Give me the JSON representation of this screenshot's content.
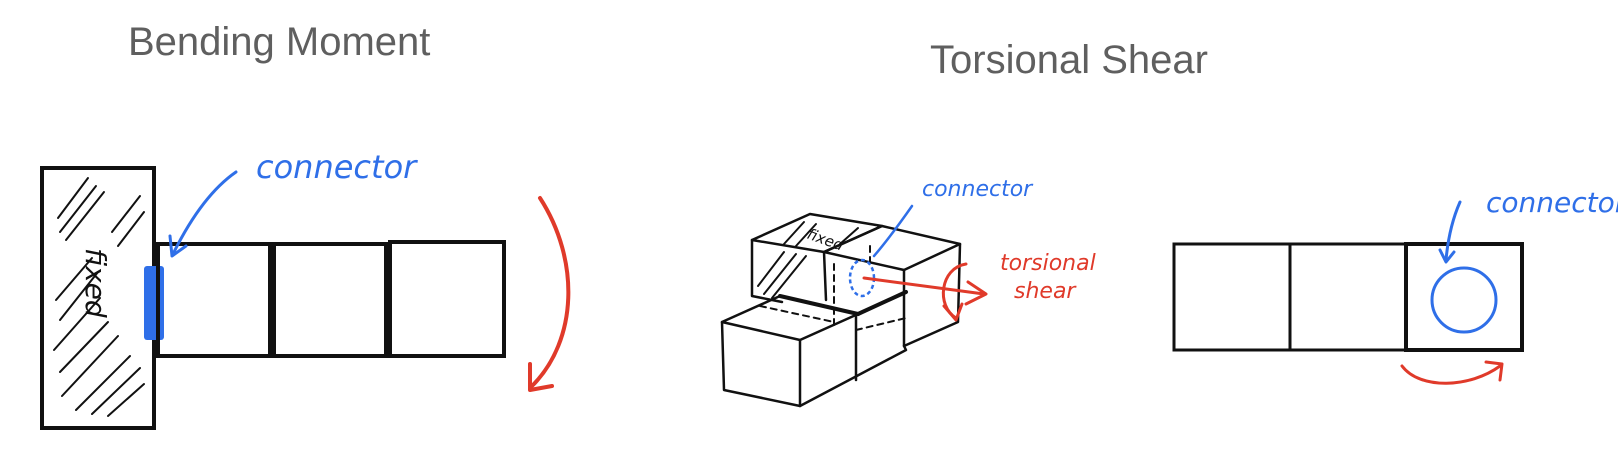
{
  "titles": {
    "bending": "Bending Moment",
    "torsional": "Torsional Shear"
  },
  "labels": {
    "fixed": "fixed",
    "fixed_small": "fixed",
    "connector_left": "connector",
    "connector_middle": "connector",
    "connector_right": "connector",
    "torsional_line1": "torsional",
    "torsional_line2": "shear"
  },
  "colors": {
    "outline": "#111111",
    "connector_blue": "#2f6fe8",
    "arrow_red": "#e03a2a",
    "title_gray": "#5f5f5f"
  }
}
